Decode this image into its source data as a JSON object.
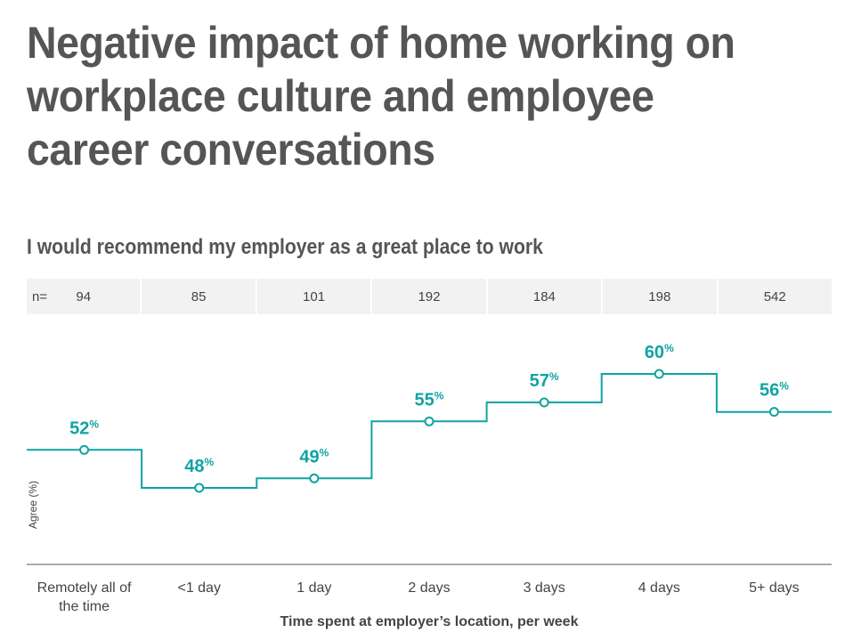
{
  "title": "Negative impact of home working on workplace culture and employee career conversations",
  "subtitle": "I would recommend my employer as a great place to work",
  "n_label": "n=",
  "colors": {
    "series": "#10a3a3",
    "axis": "#555555",
    "text": "#444444"
  },
  "chart_data": {
    "type": "line",
    "step": true,
    "categories": [
      "Remotely all of the time",
      "<1 day",
      "1 day",
      "2 days",
      "3 days",
      "4 days",
      "5+ days"
    ],
    "n": [
      "94",
      "85",
      "101",
      "192",
      "184",
      "198",
      "542"
    ],
    "series": [
      {
        "values": [
          52,
          48,
          49,
          55,
          57,
          60,
          56
        ]
      }
    ],
    "value_suffix": "%",
    "ylabel": "Agree (%)",
    "xlabel": "Time spent at employer’s location, per week",
    "ylim": [
      40,
      62
    ]
  }
}
